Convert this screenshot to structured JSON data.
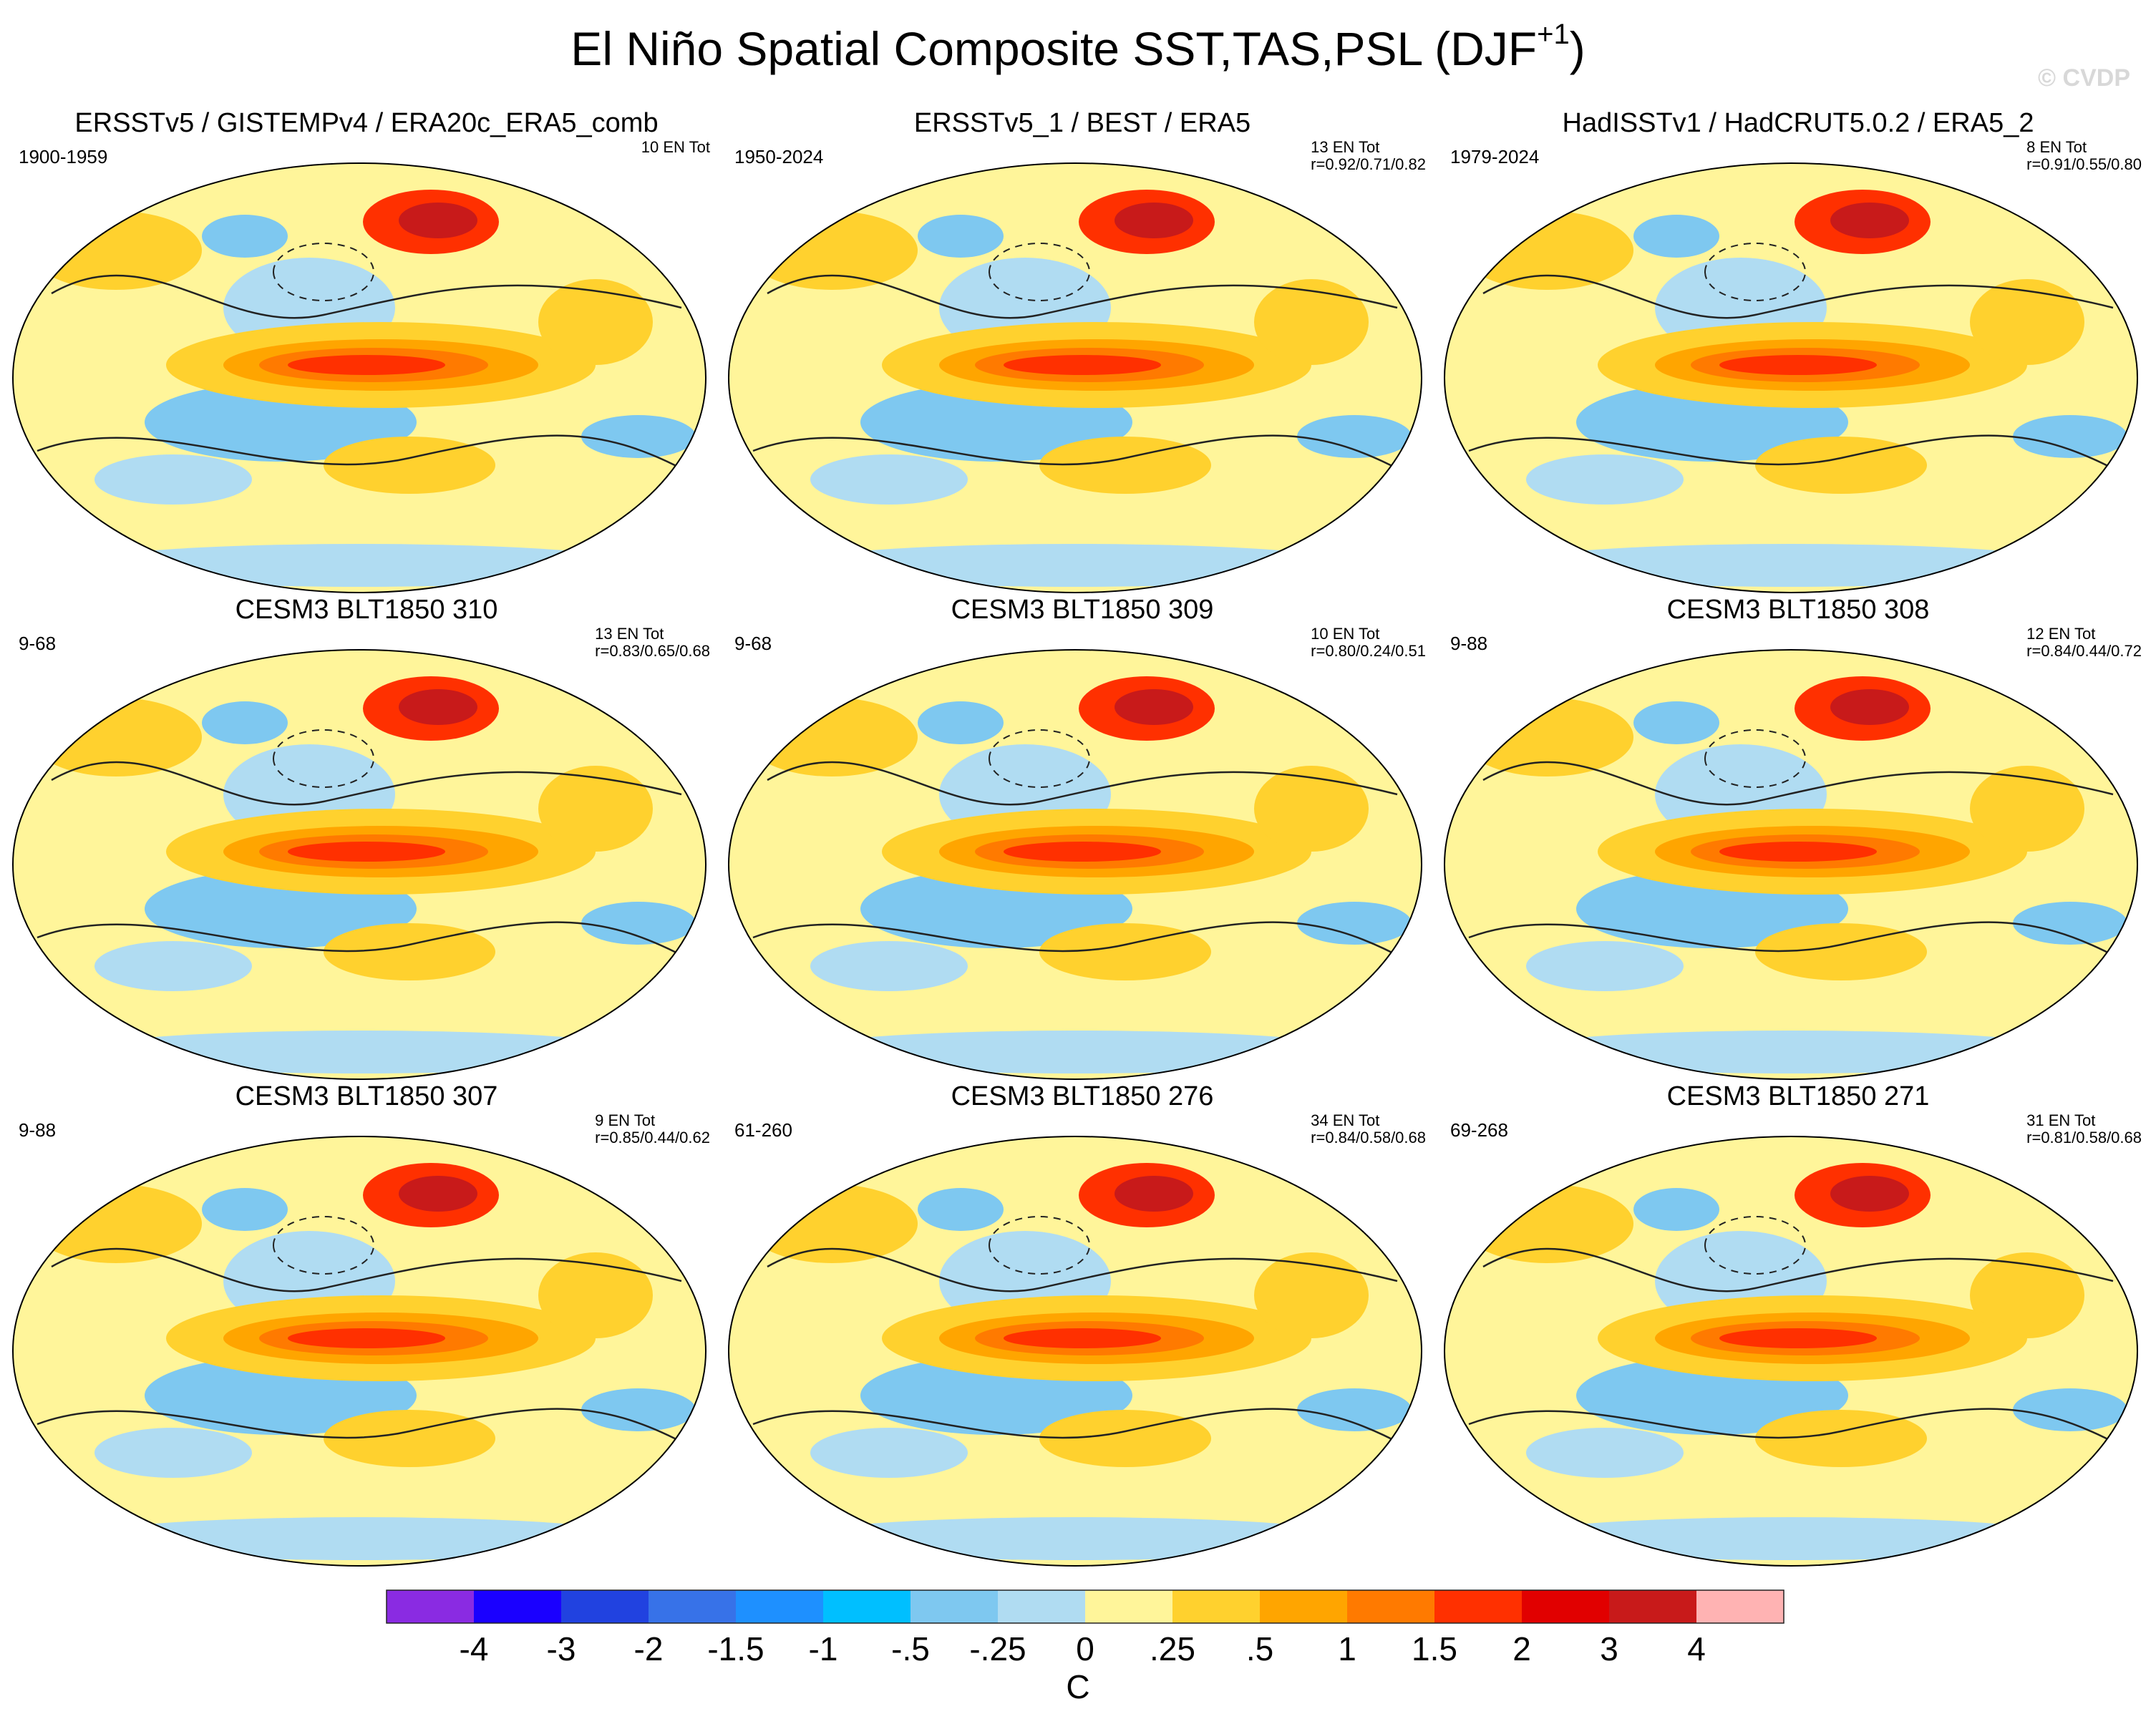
{
  "title_main": "El Niño Spatial Composite SST,TAS,PSL (DJF",
  "title_sup": "+1",
  "title_close": ")",
  "watermark": "© CVDP",
  "chart_data": {
    "type": "heatmap",
    "description_units": "C",
    "panels": [
      {
        "title": "ERSSTv5 / GISTEMPv4 / ERA20c_ERA5_comb",
        "years": "1900-1959",
        "count": "10 EN Tot",
        "corr": ""
      },
      {
        "title": "ERSSTv5_1 / BEST / ERA5",
        "years": "1950-2024",
        "count": "13 EN Tot",
        "corr": "r=0.92/0.71/0.82"
      },
      {
        "title": "HadISSTv1 / HadCRUT5.0.2 / ERA5_2",
        "years": "1979-2024",
        "count": "8 EN Tot",
        "corr": "r=0.91/0.55/0.80"
      },
      {
        "title": "CESM3 BLT1850 310",
        "years": "9-68",
        "count": "13 EN Tot",
        "corr": "r=0.83/0.65/0.68"
      },
      {
        "title": "CESM3 BLT1850 309",
        "years": "9-68",
        "count": "10 EN Tot",
        "corr": "r=0.80/0.24/0.51"
      },
      {
        "title": "CESM3 BLT1850 308",
        "years": "9-88",
        "count": "12 EN Tot",
        "corr": "r=0.84/0.44/0.72"
      },
      {
        "title": "CESM3 BLT1850 307",
        "years": "9-88",
        "count": "9 EN Tot",
        "corr": "r=0.85/0.44/0.62"
      },
      {
        "title": "CESM3 BLT1850 276",
        "years": "61-260",
        "count": "34 EN Tot",
        "corr": "r=0.84/0.58/0.68"
      },
      {
        "title": "CESM3 BLT1850 271",
        "years": "69-268",
        "count": "31 EN Tot",
        "corr": "r=0.81/0.58/0.68"
      }
    ],
    "colorbar": {
      "levels": [
        "-4",
        "-3",
        "-2",
        "-1.5",
        "-1",
        "-.5",
        "-.25",
        "0",
        ".25",
        ".5",
        "1",
        "1.5",
        "2",
        "3",
        "4"
      ],
      "colors": [
        "#8a2be2",
        "#1a00ff",
        "#2142e0",
        "#3772e8",
        "#1e90ff",
        "#00bfff",
        "#7ec8f0",
        "#b0dcf2",
        "#fff59a",
        "#ffd12e",
        "#ffa500",
        "#ff7a00",
        "#ff3000",
        "#e10000",
        "#c81a1a",
        "#ffb3b3"
      ],
      "label": "C"
    }
  }
}
